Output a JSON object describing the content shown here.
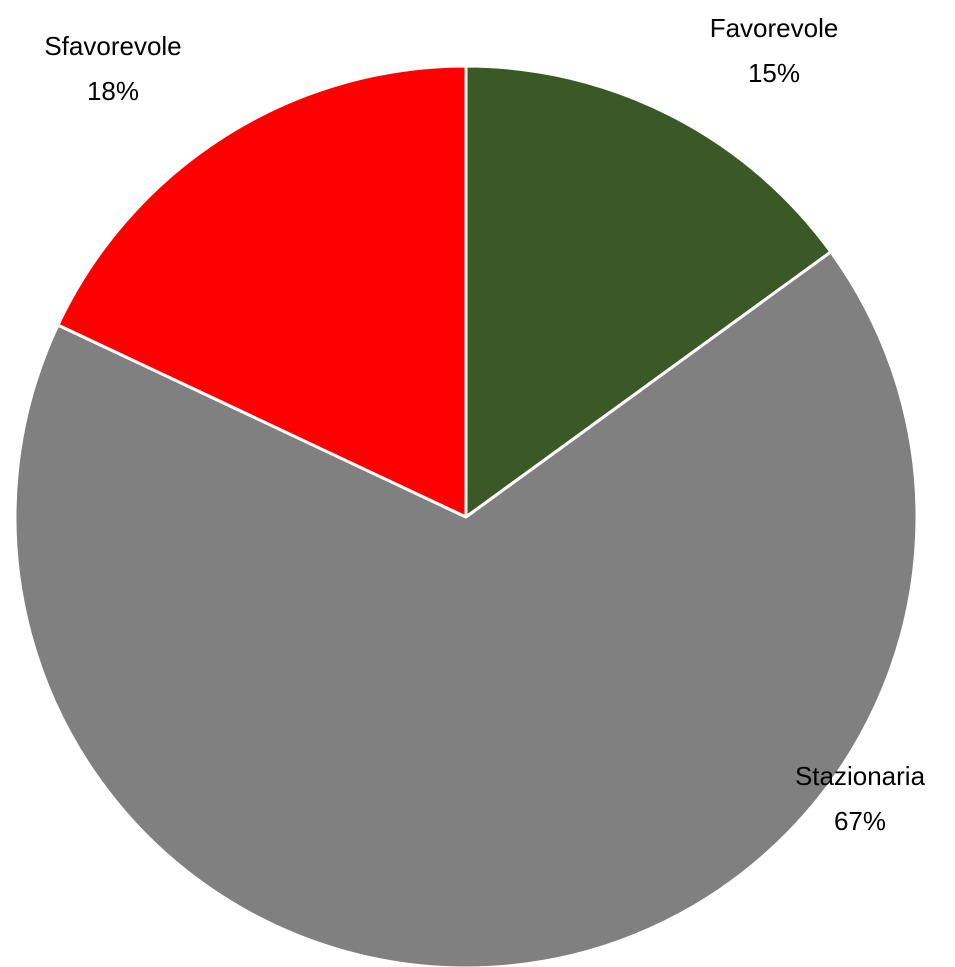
{
  "chart_data": {
    "type": "pie",
    "categories": [
      "Favorevole",
      "Stazionaria",
      "Sfavorevole"
    ],
    "values": [
      15,
      67,
      18
    ],
    "value_labels": [
      "15%",
      "67%",
      "18%"
    ],
    "colors": [
      "#3b5927",
      "#808080",
      "#ff0000"
    ]
  }
}
